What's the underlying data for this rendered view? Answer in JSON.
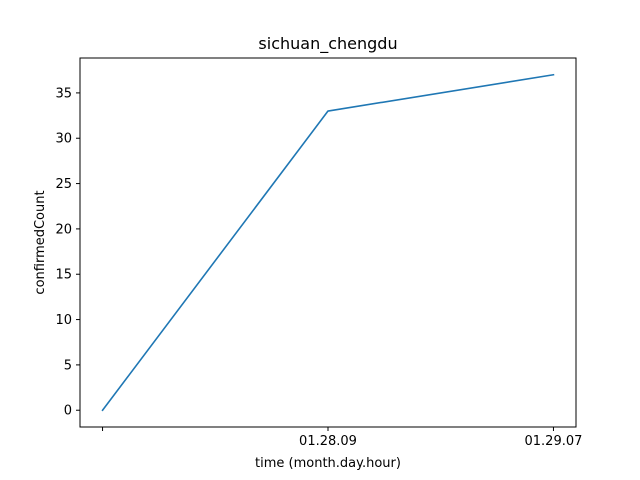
{
  "chart_data": {
    "type": "line",
    "title": "sichuan_chengdu",
    "xlabel": "time (month.day.hour)",
    "ylabel": "confirmedCount",
    "categories": [
      "",
      "01.28.09",
      "01.29.07"
    ],
    "series": [
      {
        "values": [
          0,
          33,
          37
        ],
        "color": "#1f77b4"
      }
    ],
    "ylim": [
      -1.85,
      38.85
    ],
    "yticks": [
      0,
      5,
      10,
      15,
      20,
      25,
      30,
      35
    ],
    "grid": false,
    "legend": "none"
  }
}
